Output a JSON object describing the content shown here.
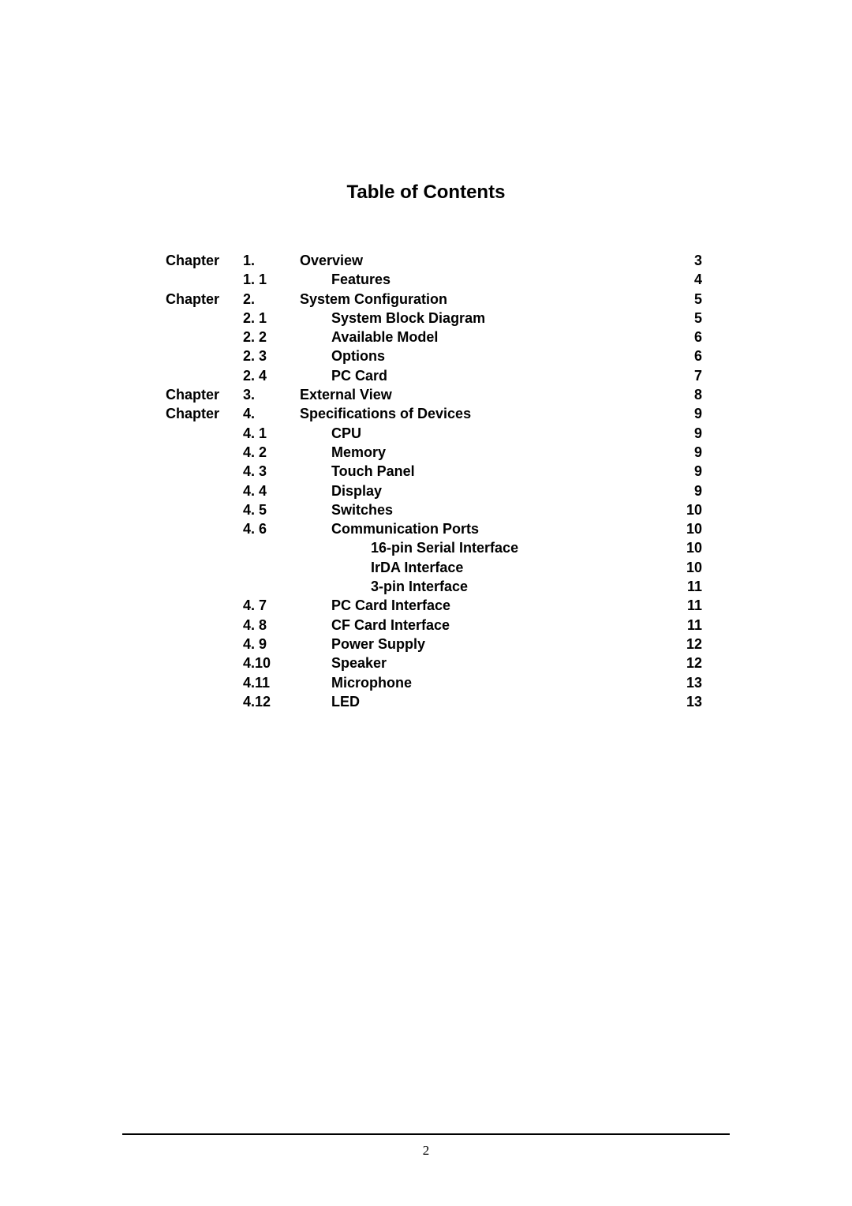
{
  "title": "Table of Contents",
  "page_number": "2",
  "toc": [
    {
      "chapter": "Chapter",
      "num": "1.",
      "title": "Overview",
      "page": "3",
      "indent": 0
    },
    {
      "chapter": "",
      "num": "1. 1",
      "title": "Features",
      "page": "4",
      "indent": 1
    },
    {
      "chapter": "Chapter",
      "num": "2.",
      "title": "System Configuration",
      "page": "5",
      "indent": 0
    },
    {
      "chapter": "",
      "num": "2. 1",
      "title": "System Block Diagram",
      "page": "5",
      "indent": 1
    },
    {
      "chapter": "",
      "num": "2. 2",
      "title": "Available Model",
      "page": "6",
      "indent": 1
    },
    {
      "chapter": "",
      "num": "2. 3",
      "title": "Options",
      "page": "6",
      "indent": 1
    },
    {
      "chapter": "",
      "num": "2. 4",
      "title": "PC Card",
      "page": "7",
      "indent": 1
    },
    {
      "chapter": "Chapter",
      "num": "3.",
      "title": "External View",
      "page": "8",
      "indent": 0
    },
    {
      "chapter": "Chapter",
      "num": "4.",
      "title": "Specifications of Devices",
      "page": "9",
      "indent": 0
    },
    {
      "chapter": "",
      "num": "4. 1",
      "title": "CPU",
      "page": "9",
      "indent": 1
    },
    {
      "chapter": "",
      "num": "4. 2",
      "title": "Memory",
      "page": "9",
      "indent": 1
    },
    {
      "chapter": "",
      "num": "4. 3",
      "title": "Touch Panel",
      "page": "9",
      "indent": 1
    },
    {
      "chapter": "",
      "num": "4. 4",
      "title": "Display",
      "page": "9",
      "indent": 1
    },
    {
      "chapter": "",
      "num": "4. 5",
      "title": "Switches",
      "page": "10",
      "indent": 1
    },
    {
      "chapter": "",
      "num": "4. 6",
      "title": "Communication Ports",
      "page": "10",
      "indent": 1
    },
    {
      "chapter": "",
      "num": "",
      "title": "16-pin Serial Interface",
      "page": "10",
      "indent": 2
    },
    {
      "chapter": "",
      "num": "",
      "title": "IrDA Interface",
      "page": "10",
      "indent": 2
    },
    {
      "chapter": "",
      "num": "",
      "title": "3-pin Interface",
      "page": "11",
      "indent": 2
    },
    {
      "chapter": "",
      "num": "4. 7",
      "title": "PC Card Interface",
      "page": "11",
      "indent": 1
    },
    {
      "chapter": "",
      "num": "4. 8",
      "title": "CF Card Interface",
      "page": "11",
      "indent": 1
    },
    {
      "chapter": "",
      "num": "4. 9",
      "title": "Power Supply",
      "page": "12",
      "indent": 1
    },
    {
      "chapter": "",
      "num": "4.10",
      "title": "Speaker",
      "page": "12",
      "indent": 1
    },
    {
      "chapter": "",
      "num": "4.11",
      "title": "Microphone",
      "page": "13",
      "indent": 1
    },
    {
      "chapter": "",
      "num": "4.12",
      "title": "LED",
      "page": "13",
      "indent": 1
    }
  ]
}
